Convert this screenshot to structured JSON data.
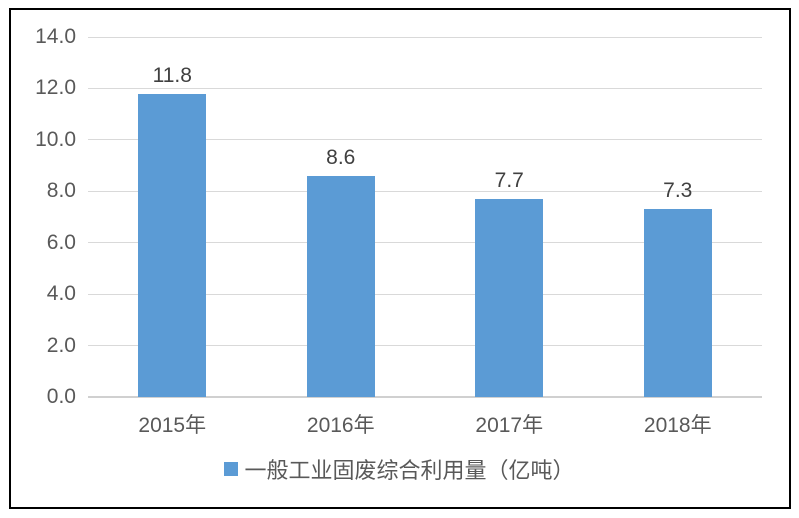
{
  "chart_data": {
    "type": "bar",
    "categories": [
      "2015年",
      "2016年",
      "2017年",
      "2018年"
    ],
    "values": [
      11.8,
      8.6,
      7.7,
      7.3
    ],
    "value_labels": [
      "11.8",
      "8.6",
      "7.7",
      "7.3"
    ],
    "title": "",
    "xlabel": "",
    "ylabel": "",
    "ylim": [
      0,
      14
    ],
    "ytick_step": 2,
    "ytick_labels": [
      "0.0",
      "2.0",
      "4.0",
      "6.0",
      "8.0",
      "10.0",
      "12.0",
      "14.0"
    ],
    "grid": true,
    "legend_position": "bottom",
    "legend_entries": [
      "一般工业固废综合利用量（亿吨）"
    ]
  },
  "legend": {
    "label": "一般工业固废综合利用量（亿吨）"
  },
  "colors": {
    "bar": "#5b9bd5",
    "legend_marker": "#5b9bd5",
    "gridline": "#d9d9d9",
    "axis_text": "#595959",
    "data_label_text": "#404040",
    "frame_border": "#000000",
    "background": "#ffffff"
  }
}
